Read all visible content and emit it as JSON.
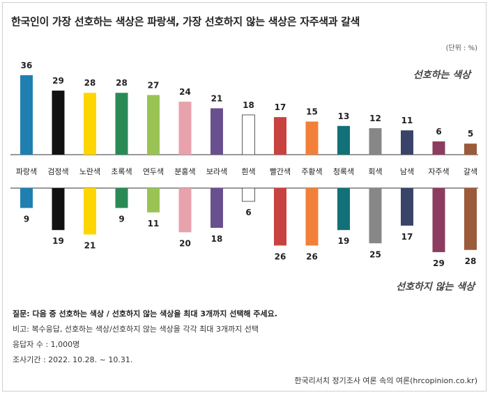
{
  "title": "한국인이 가장 선호하는 색상은 파랑색, 가장 선호하지 않는 색상은 자주색과 갈색",
  "unit": "(단위 : %)",
  "legend": {
    "preferred": "선호하는 색상",
    "disliked": "선호하지 않는 색상"
  },
  "chart_data": {
    "type": "bar",
    "categories": [
      "파랑색",
      "검정색",
      "노란색",
      "초록색",
      "연두색",
      "분홍색",
      "보라색",
      "흰색",
      "빨간색",
      "주황색",
      "청록색",
      "회색",
      "남색",
      "자주색",
      "갈색"
    ],
    "colors": [
      "#1f7fb0",
      "#111111",
      "#ffd500",
      "#2a8a55",
      "#99c455",
      "#e8a2ac",
      "#6a4f8f",
      "#ffffff",
      "#c8433f",
      "#f28039",
      "#127178",
      "#878787",
      "#3a4468",
      "#8c3d5f",
      "#9b5a3a"
    ],
    "series": [
      {
        "name": "선호하는 색상",
        "values": [
          36,
          29,
          28,
          28,
          27,
          24,
          21,
          18,
          17,
          15,
          13,
          12,
          11,
          6,
          5
        ]
      },
      {
        "name": "선호하지 않는 색상",
        "values": [
          9,
          19,
          21,
          9,
          11,
          20,
          18,
          6,
          26,
          26,
          19,
          25,
          17,
          29,
          28
        ]
      }
    ],
    "grid": false,
    "legend_position": "right"
  },
  "notes": {
    "question": "질문: 다음 중 선호하는 색상 / 선호하지 않는 색상을 최대 3개까지 선택해 주세요.",
    "remark": "비고: 복수응답, 선호하는 색상/선호하지 않는 색상을 각각 최대 3개까지 선택",
    "respondents": "응답자 수 : 1,000명",
    "period": "조사기간 : 2022. 10.28. ~ 10.31."
  },
  "source": "한국리서치 정기조사 여론 속의 여론(hrcopinion.co.kr)"
}
